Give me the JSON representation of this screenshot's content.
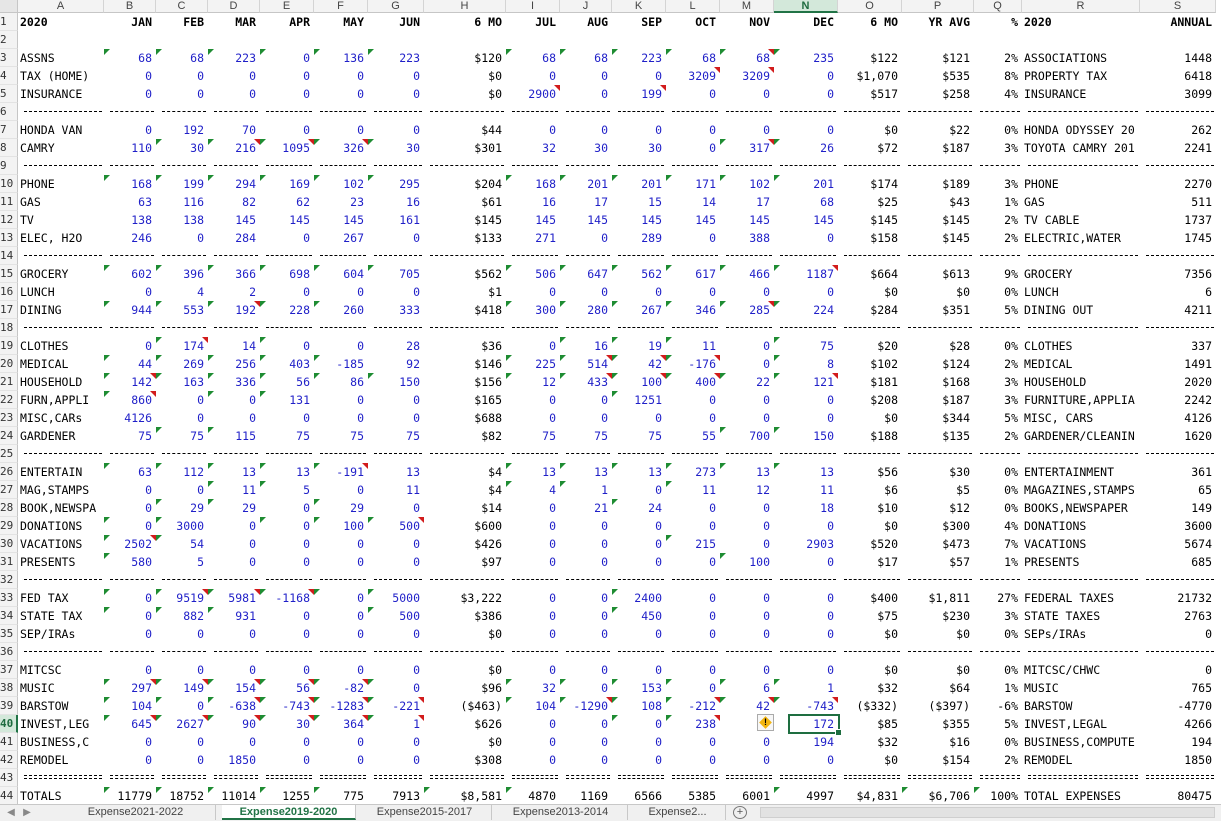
{
  "columns": [
    "A",
    "B",
    "C",
    "D",
    "E",
    "F",
    "G",
    "H",
    "I",
    "J",
    "K",
    "L",
    "M",
    "N",
    "O",
    "P",
    "Q",
    "R",
    "S"
  ],
  "selected_column": "N",
  "selected_row": 40,
  "header": [
    "2020",
    "JAN",
    "FEB",
    "MAR",
    "APR",
    "MAY",
    "JUN",
    "6 MO",
    "JUL",
    "AUG",
    "SEP",
    "OCT",
    "NOV",
    "DEC",
    "6 MO",
    "YR AVG",
    "%",
    "2020",
    "ANNUAL"
  ],
  "sections": [
    {
      "rows": [
        {
          "n": 3,
          "cells": [
            "ASSNS",
            "68",
            "68",
            "223",
            "0",
            "136",
            "223",
            "$120",
            "68",
            "68",
            "223",
            "68",
            "68",
            "235",
            "$122",
            "$121",
            "2%",
            "ASSOCIATIONS",
            "1448"
          ]
        },
        {
          "n": 4,
          "cells": [
            "TAX (HOME)",
            "0",
            "0",
            "0",
            "0",
            "0",
            "0",
            "$0",
            "0",
            "0",
            "0",
            "3209",
            "3209",
            "0",
            "$1,070",
            "$535",
            "8%",
            "PROPERTY TAX",
            "6418"
          ]
        },
        {
          "n": 5,
          "cells": [
            "INSURANCE",
            "0",
            "0",
            "0",
            "0",
            "0",
            "0",
            "$0",
            "2900",
            "0",
            "199",
            "0",
            "0",
            "0",
            "$517",
            "$258",
            "4%",
            "INSURANCE",
            "3099"
          ]
        }
      ]
    },
    {
      "rows": [
        {
          "n": 7,
          "cells": [
            "HONDA VAN",
            "0",
            "192",
            "70",
            "0",
            "0",
            "0",
            "$44",
            "0",
            "0",
            "0",
            "0",
            "0",
            "0",
            "$0",
            "$22",
            "0%",
            "HONDA ODYSSEY 20",
            "262"
          ]
        },
        {
          "n": 8,
          "cells": [
            "CAMRY",
            "110",
            "30",
            "216",
            "1095",
            "326",
            "30",
            "$301",
            "32",
            "30",
            "30",
            "0",
            "317",
            "26",
            "$72",
            "$187",
            "3%",
            "TOYOTA CAMRY 201",
            "2241"
          ]
        }
      ]
    },
    {
      "rows": [
        {
          "n": 10,
          "cells": [
            "PHONE",
            "168",
            "199",
            "294",
            "169",
            "102",
            "295",
            "$204",
            "168",
            "201",
            "201",
            "171",
            "102",
            "201",
            "$174",
            "$189",
            "3%",
            "PHONE",
            "2270"
          ]
        },
        {
          "n": 11,
          "cells": [
            "GAS",
            "63",
            "116",
            "82",
            "62",
            "23",
            "16",
            "$61",
            "16",
            "17",
            "15",
            "14",
            "17",
            "68",
            "$25",
            "$43",
            "1%",
            "GAS",
            "511"
          ]
        },
        {
          "n": 12,
          "cells": [
            "TV",
            "138",
            "138",
            "145",
            "145",
            "145",
            "161",
            "$145",
            "145",
            "145",
            "145",
            "145",
            "145",
            "145",
            "$145",
            "$145",
            "2%",
            "TV CABLE",
            "1737"
          ]
        },
        {
          "n": 13,
          "cells": [
            "ELEC, H2O",
            "246",
            "0",
            "284",
            "0",
            "267",
            "0",
            "$133",
            "271",
            "0",
            "289",
            "0",
            "388",
            "0",
            "$158",
            "$145",
            "2%",
            "ELECTRIC,WATER",
            "1745"
          ]
        }
      ]
    },
    {
      "rows": [
        {
          "n": 15,
          "cells": [
            "GROCERY",
            "602",
            "396",
            "366",
            "698",
            "604",
            "705",
            "$562",
            "506",
            "647",
            "562",
            "617",
            "466",
            "1187",
            "$664",
            "$613",
            "9%",
            "GROCERY",
            "7356"
          ]
        },
        {
          "n": 16,
          "cells": [
            "LUNCH",
            "0",
            "4",
            "2",
            "0",
            "0",
            "0",
            "$1",
            "0",
            "0",
            "0",
            "0",
            "0",
            "0",
            "$0",
            "$0",
            "0%",
            "LUNCH",
            "6"
          ]
        },
        {
          "n": 17,
          "cells": [
            "DINING",
            "944",
            "553",
            "192",
            "228",
            "260",
            "333",
            "$418",
            "300",
            "280",
            "267",
            "346",
            "285",
            "224",
            "$284",
            "$351",
            "5%",
            "DINING OUT",
            "4211"
          ]
        }
      ]
    },
    {
      "rows": [
        {
          "n": 19,
          "cells": [
            "CLOTHES",
            "0",
            "174",
            "14",
            "0",
            "0",
            "28",
            "$36",
            "0",
            "16",
            "19",
            "11",
            "0",
            "75",
            "$20",
            "$28",
            "0%",
            "CLOTHES",
            "337"
          ]
        },
        {
          "n": 20,
          "cells": [
            "MEDICAL",
            "44",
            "269",
            "256",
            "403",
            "-185",
            "92",
            "$146",
            "225",
            "514",
            "42",
            "-176",
            "0",
            "8",
            "$102",
            "$124",
            "2%",
            "MEDICAL",
            "1491"
          ]
        },
        {
          "n": 21,
          "cells": [
            "HOUSEHOLD",
            "142",
            "163",
            "336",
            "56",
            "86",
            "150",
            "$156",
            "12",
            "433",
            "100",
            "400",
            "22",
            "121",
            "$181",
            "$168",
            "3%",
            "HOUSEHOLD",
            "2020"
          ]
        },
        {
          "n": 22,
          "cells": [
            "FURN,APPLI",
            "860",
            "0",
            "0",
            "131",
            "0",
            "0",
            "$165",
            "0",
            "0",
            "1251",
            "0",
            "0",
            "0",
            "$208",
            "$187",
            "3%",
            "FURNITURE,APPLIA",
            "2242"
          ]
        },
        {
          "n": 23,
          "cells": [
            "MISC,CARs",
            "4126",
            "0",
            "0",
            "0",
            "0",
            "0",
            "$688",
            "0",
            "0",
            "0",
            "0",
            "0",
            "0",
            "$0",
            "$344",
            "5%",
            "MISC, CARS",
            "4126"
          ]
        },
        {
          "n": 24,
          "cells": [
            "GARDENER",
            "75",
            "75",
            "115",
            "75",
            "75",
            "75",
            "$82",
            "75",
            "75",
            "75",
            "55",
            "700",
            "150",
            "$188",
            "$135",
            "2%",
            "GARDENER/CLEANIN",
            "1620"
          ]
        }
      ]
    },
    {
      "rows": [
        {
          "n": 26,
          "cells": [
            "ENTERTAIN",
            "63",
            "112",
            "13",
            "13",
            "-191",
            "13",
            "$4",
            "13",
            "13",
            "13",
            "273",
            "13",
            "13",
            "$56",
            "$30",
            "0%",
            "ENTERTAINMENT",
            "361"
          ]
        },
        {
          "n": 27,
          "cells": [
            "MAG,STAMPS",
            "0",
            "0",
            "11",
            "5",
            "0",
            "11",
            "$4",
            "4",
            "1",
            "0",
            "11",
            "12",
            "11",
            "$6",
            "$5",
            "0%",
            "MAGAZINES,STAMPS",
            "65"
          ]
        },
        {
          "n": 28,
          "cells": [
            "BOOK,NEWSPA",
            "0",
            "29",
            "29",
            "0",
            "29",
            "0",
            "$14",
            "0",
            "21",
            "24",
            "0",
            "0",
            "18",
            "$10",
            "$12",
            "0%",
            "BOOKS,NEWSPAPER",
            "149"
          ]
        },
        {
          "n": 29,
          "cells": [
            "DONATIONS",
            "0",
            "3000",
            "0",
            "0",
            "100",
            "500",
            "$600",
            "0",
            "0",
            "0",
            "0",
            "0",
            "0",
            "$0",
            "$300",
            "4%",
            "DONATIONS",
            "3600"
          ]
        },
        {
          "n": 30,
          "cells": [
            "VACATIONS",
            "2502",
            "54",
            "0",
            "0",
            "0",
            "0",
            "$426",
            "0",
            "0",
            "0",
            "215",
            "0",
            "2903",
            "$520",
            "$473",
            "7%",
            "VACATIONS",
            "5674"
          ]
        },
        {
          "n": 31,
          "cells": [
            "PRESENTS",
            "580",
            "5",
            "0",
            "0",
            "0",
            "0",
            "$97",
            "0",
            "0",
            "0",
            "0",
            "100",
            "0",
            "$17",
            "$57",
            "1%",
            "PRESENTS",
            "685"
          ]
        }
      ]
    },
    {
      "rows": [
        {
          "n": 33,
          "cells": [
            "FED   TAX",
            "0",
            "9519",
            "5981",
            "-1168",
            "0",
            "5000",
            "$3,222",
            "0",
            "0",
            "2400",
            "0",
            "0",
            "0",
            "$400",
            "$1,811",
            "27%",
            "FEDERAL TAXES",
            "21732"
          ]
        },
        {
          "n": 34,
          "cells": [
            "STATE TAX",
            "0",
            "882",
            "931",
            "0",
            "0",
            "500",
            "$386",
            "0",
            "0",
            "450",
            "0",
            "0",
            "0",
            "$75",
            "$230",
            "3%",
            "STATE TAXES",
            "2763"
          ]
        },
        {
          "n": 35,
          "cells": [
            "SEP/IRAs",
            "0",
            "0",
            "0",
            "0",
            "0",
            "0",
            "$0",
            "0",
            "0",
            "0",
            "0",
            "0",
            "0",
            "$0",
            "$0",
            "0%",
            "SEPs/IRAs",
            "0"
          ]
        }
      ]
    },
    {
      "rows": [
        {
          "n": 37,
          "cells": [
            "MITCSC",
            "0",
            "0",
            "0",
            "0",
            "0",
            "0",
            "$0",
            "0",
            "0",
            "0",
            "0",
            "0",
            "0",
            "$0",
            "$0",
            "0%",
            "MITCSC/CHWC",
            "0"
          ]
        },
        {
          "n": 38,
          "cells": [
            "MUSIC",
            "297",
            "149",
            "154",
            "56",
            "-82",
            "0",
            "$96",
            "32",
            "0",
            "153",
            "0",
            "6",
            "1",
            "$32",
            "$64",
            "1%",
            "MUSIC",
            "765"
          ]
        },
        {
          "n": 39,
          "cells": [
            "BARSTOW",
            "104",
            "0",
            "-638",
            "-743",
            "-1283",
            "-221",
            "($463)",
            "104",
            "-1290",
            "108",
            "-212",
            "42",
            "-743",
            "($332)",
            "($397)",
            "-6%",
            "BARSTOW",
            "-4770"
          ]
        },
        {
          "n": 40,
          "cells": [
            "INVEST,LEG",
            "645",
            "2627",
            "90",
            "30",
            "364",
            "1",
            "$626",
            "0",
            "0",
            "0",
            "238",
            "0",
            "172",
            "$85",
            "$355",
            "5%",
            "INVEST,LEGAL",
            "4266"
          ]
        },
        {
          "n": 41,
          "cells": [
            "BUSINESS,C",
            "0",
            "0",
            "0",
            "0",
            "0",
            "0",
            "$0",
            "0",
            "0",
            "0",
            "0",
            "0",
            "194",
            "$32",
            "$16",
            "0%",
            "BUSINESS,COMPUTE",
            "194"
          ]
        },
        {
          "n": 42,
          "cells": [
            "REMODEL",
            "0",
            "0",
            "1850",
            "0",
            "0",
            "0",
            "$308",
            "0",
            "0",
            "0",
            "0",
            "0",
            "0",
            "$0",
            "$154",
            "2%",
            "REMODEL",
            "1850"
          ]
        }
      ]
    }
  ],
  "totals": {
    "n": 44,
    "cells": [
      "TOTALS",
      "11779",
      "18752",
      "11014",
      "1255",
      "775",
      "7913",
      "$8,581",
      "4870",
      "1169",
      "6566",
      "5385",
      "6001",
      "4997",
      "$4,831",
      "$6,706",
      "100%",
      "TOTAL EXPENSES",
      "80475"
    ]
  },
  "sheet_tabs": [
    "Expense2021-2022",
    "Expense2019-2020",
    "Expense2015-2017",
    "Expense2013-2014",
    "Expense2..."
  ],
  "active_tab": "Expense2019-2020",
  "warning_icon": "!",
  "colors": {
    "entry_blue": "#1f1fc8",
    "accent_green": "#217346",
    "comment_red": "#d21c1c",
    "error_green": "#1e8c32"
  }
}
